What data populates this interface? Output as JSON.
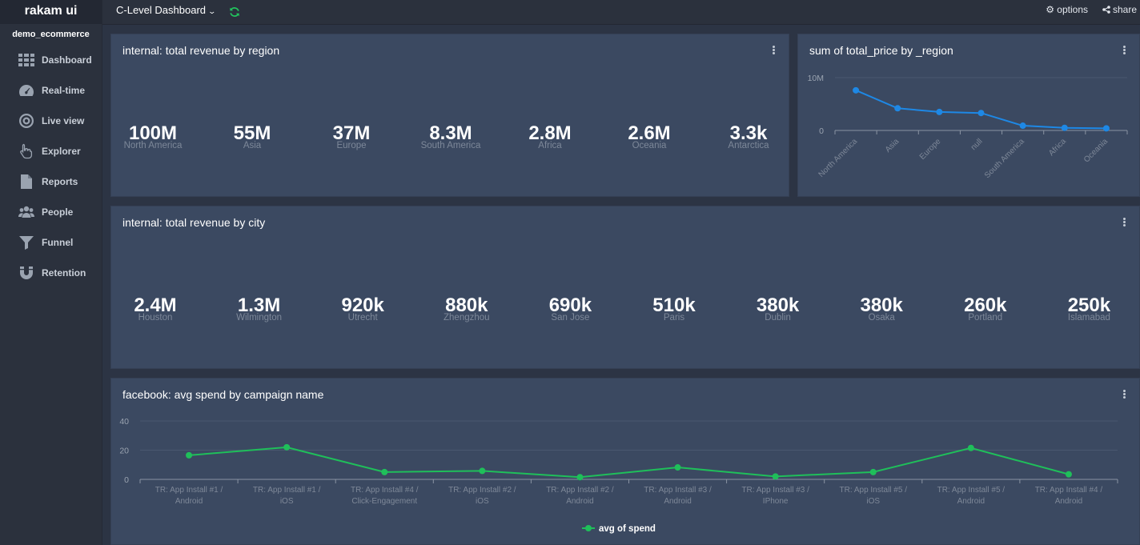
{
  "app": {
    "brand": "rakam ui",
    "project": "demo_ecommerce"
  },
  "sidebar": {
    "items": [
      {
        "label": "Dashboard",
        "icon": "grid-icon"
      },
      {
        "label": "Real-time",
        "icon": "gauge-icon"
      },
      {
        "label": "Live view",
        "icon": "target-icon"
      },
      {
        "label": "Explorer",
        "icon": "pointer-hand-icon"
      },
      {
        "label": "Reports",
        "icon": "file-icon"
      },
      {
        "label": "People",
        "icon": "users-icon"
      },
      {
        "label": "Funnel",
        "icon": "funnel-icon"
      },
      {
        "label": "Retention",
        "icon": "magnet-icon"
      }
    ]
  },
  "topbar": {
    "dashboard_title": "C-Level Dashboard",
    "options_label": "options",
    "share_label": "share"
  },
  "panels": {
    "region": {
      "title": "internal: total revenue by region",
      "metrics": [
        {
          "value": "100M",
          "label": "North America"
        },
        {
          "value": "55M",
          "label": "Asia"
        },
        {
          "value": "37M",
          "label": "Europe"
        },
        {
          "value": "8.3M",
          "label": "South America"
        },
        {
          "value": "2.8M",
          "label": "Africa"
        },
        {
          "value": "2.6M",
          "label": "Oceania"
        },
        {
          "value": "3.3k",
          "label": "Antarctica"
        }
      ]
    },
    "price_chart": {
      "title": "sum of total_price by _region",
      "color": "#1e88e5"
    },
    "city": {
      "title": "internal: total revenue by city",
      "metrics": [
        {
          "value": "2.4M",
          "label": "Houston"
        },
        {
          "value": "1.3M",
          "label": "Wilmington"
        },
        {
          "value": "920k",
          "label": "Utrecht"
        },
        {
          "value": "880k",
          "label": "Zhengzhou"
        },
        {
          "value": "690k",
          "label": "San Jose"
        },
        {
          "value": "510k",
          "label": "Paris"
        },
        {
          "value": "380k",
          "label": "Dublin"
        },
        {
          "value": "380k",
          "label": "Osaka"
        },
        {
          "value": "260k",
          "label": "Portland"
        },
        {
          "value": "250k",
          "label": "Islamabad"
        }
      ]
    },
    "facebook": {
      "title": "facebook: avg spend by campaign name",
      "color": "#1fbf5a"
    }
  },
  "chart_data": [
    {
      "type": "line",
      "title": "sum of total_price by _region",
      "categories": [
        "North America",
        "Asia",
        "Europe",
        "null",
        "South America",
        "Africa",
        "Oceania"
      ],
      "series": [
        {
          "values": [
            7600000,
            4200000,
            3500000,
            3300000,
            900000,
            500000,
            400000
          ]
        }
      ],
      "yticks": [
        "10M",
        "0"
      ],
      "ylim": [
        0,
        10000000
      ],
      "grid": true
    },
    {
      "type": "line",
      "title": "facebook: avg spend by campaign name",
      "categories": [
        "TR: App Install #1 / Android",
        "TR: App Install #1 / iOS",
        "TR: App Install #4 / Click-Engagement",
        "TR: App Install #2 / iOS",
        "TR: App Install #2 / Android",
        "TR: App Install #3 / Android",
        "TR: App Install #3 / IPhone",
        "TR: App Install #5 / iOS",
        "TR: App Install #5 / Android",
        "TR: App Install #4 / Android"
      ],
      "series": [
        {
          "name": "avg of spend",
          "values": [
            16.5,
            22,
            5,
            5.8,
            1.5,
            8.2,
            2,
            5,
            21.5,
            3.5
          ]
        }
      ],
      "yticks": [
        "40",
        "20",
        "0"
      ],
      "ylim": [
        0,
        40
      ],
      "grid": true,
      "legend": "bottom-center"
    }
  ]
}
